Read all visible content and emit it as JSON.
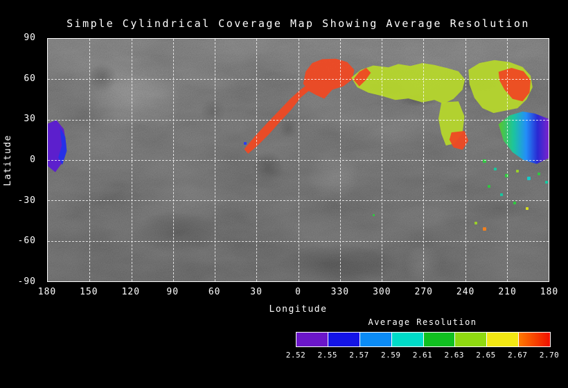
{
  "page": {
    "background": "#000000",
    "foreground": "#ffffff",
    "grid_color": "rgba(255,255,255,0.8)"
  },
  "chart_data": {
    "type": "heatmap",
    "title": "Simple Cylindrical Coverage Map Showing Average Resolution",
    "xlabel": "Longitude",
    "ylabel": "Latitude",
    "x_tick_labels": [
      "180",
      "150",
      "120",
      "90",
      "60",
      "30",
      "0",
      "330",
      "300",
      "270",
      "240",
      "210",
      "180"
    ],
    "y_tick_labels": [
      "90",
      "60",
      "30",
      "0",
      "-30",
      "-60",
      "-90"
    ],
    "x_axis_note": "longitude wraps 180 -> 0 -> 330 ... 210 -> 180",
    "y_range_deg": [
      90,
      -90
    ],
    "grid": "dashed white lines every 30 degrees, boxed axes",
    "basemap": "grayscale simple-cylindrical planetary surface mosaic",
    "colorbar": {
      "title": "Average Resolution",
      "min": 2.52,
      "max": 2.7,
      "tick_labels": [
        "2.52",
        "2.55",
        "2.57",
        "2.59",
        "2.61",
        "2.63",
        "2.65",
        "2.67",
        "2.70"
      ],
      "position": "bottom-right",
      "segments": [
        {
          "color": "#6b16c9"
        },
        {
          "color": "#1414e6"
        },
        {
          "color": "#0b8bf5"
        },
        {
          "color": "#00dcc8"
        },
        {
          "color": "#10c020"
        },
        {
          "color": "#8fd911"
        },
        {
          "color": "#f2e713"
        },
        {
          "color": "#ff7a00",
          "color2": "#f01000"
        }
      ]
    },
    "regions": [
      {
        "name": "west-limb-purple-patch",
        "approx_value": "2.52-2.54",
        "approx_lon": "180-168",
        "approx_lat": "-8 to 27",
        "color": "#5b1ad2",
        "opacity": 0.95,
        "points": [
          [
            0.0,
            0.35
          ],
          [
            0.017,
            0.335
          ],
          [
            0.032,
            0.372
          ],
          [
            0.037,
            0.44
          ],
          [
            0.031,
            0.505
          ],
          [
            0.015,
            0.55
          ],
          [
            0.0,
            0.525
          ]
        ]
      },
      {
        "name": "west-limb-blue-fringe",
        "approx_value": "2.55",
        "color": "#2331e8",
        "opacity": 0.95,
        "points": [
          [
            0.024,
            0.365
          ],
          [
            0.035,
            0.405
          ],
          [
            0.038,
            0.462
          ],
          [
            0.029,
            0.52
          ],
          [
            0.021,
            0.49
          ],
          [
            0.028,
            0.44
          ]
        ]
      },
      {
        "name": "red-diagonal-arc",
        "approx_value": "2.69-2.70",
        "approx_lon": "40-0",
        "approx_lat": "8 to 52",
        "color": "#ef4923",
        "opacity": 0.95,
        "points": [
          [
            0.392,
            0.455
          ],
          [
            0.414,
            0.401
          ],
          [
            0.437,
            0.349
          ],
          [
            0.461,
            0.298
          ],
          [
            0.483,
            0.25
          ],
          [
            0.5,
            0.218
          ],
          [
            0.513,
            0.196
          ],
          [
            0.524,
            0.21
          ],
          [
            0.505,
            0.242
          ],
          [
            0.486,
            0.293
          ],
          [
            0.463,
            0.344
          ],
          [
            0.441,
            0.395
          ],
          [
            0.419,
            0.44
          ],
          [
            0.4,
            0.474
          ]
        ]
      },
      {
        "name": "north-red-blob",
        "approx_value": "2.69-2.70",
        "approx_lon": "355-318",
        "approx_lat": "50 to 75",
        "color": "#ef4923",
        "opacity": 0.95,
        "points": [
          [
            0.51,
            0.185
          ],
          [
            0.515,
            0.135
          ],
          [
            0.528,
            0.1
          ],
          [
            0.548,
            0.084
          ],
          [
            0.575,
            0.082
          ],
          [
            0.598,
            0.096
          ],
          [
            0.612,
            0.128
          ],
          [
            0.608,
            0.168
          ],
          [
            0.59,
            0.196
          ],
          [
            0.568,
            0.21
          ],
          [
            0.552,
            0.247
          ],
          [
            0.536,
            0.232
          ],
          [
            0.52,
            0.214
          ]
        ]
      },
      {
        "name": "north-chartreuse-band",
        "approx_value": "2.64-2.66",
        "approx_lon": "323-241",
        "approx_lat": "42 to 70",
        "color": "#b5d62c",
        "opacity": 0.95,
        "points": [
          [
            0.606,
            0.16
          ],
          [
            0.625,
            0.128
          ],
          [
            0.65,
            0.11
          ],
          [
            0.68,
            0.118
          ],
          [
            0.7,
            0.104
          ],
          [
            0.724,
            0.112
          ],
          [
            0.748,
            0.1
          ],
          [
            0.772,
            0.108
          ],
          [
            0.796,
            0.12
          ],
          [
            0.82,
            0.134
          ],
          [
            0.833,
            0.168
          ],
          [
            0.828,
            0.21
          ],
          [
            0.81,
            0.248
          ],
          [
            0.79,
            0.268
          ],
          [
            0.772,
            0.252
          ],
          [
            0.748,
            0.262
          ],
          [
            0.72,
            0.246
          ],
          [
            0.694,
            0.252
          ],
          [
            0.668,
            0.236
          ],
          [
            0.64,
            0.222
          ],
          [
            0.618,
            0.2
          ]
        ]
      },
      {
        "name": "band-red-streak",
        "approx_value": "2.70",
        "color": "#ef4923",
        "opacity": 0.95,
        "points": [
          [
            0.61,
            0.168
          ],
          [
            0.622,
            0.136
          ],
          [
            0.636,
            0.12
          ],
          [
            0.645,
            0.14
          ],
          [
            0.634,
            0.172
          ],
          [
            0.622,
            0.196
          ]
        ]
      },
      {
        "name": "band-south-extension",
        "approx_value": "2.64-2.66",
        "color": "#b5d62c",
        "opacity": 0.95,
        "points": [
          [
            0.786,
            0.262
          ],
          [
            0.82,
            0.258
          ],
          [
            0.832,
            0.32
          ],
          [
            0.828,
            0.388
          ],
          [
            0.812,
            0.432
          ],
          [
            0.795,
            0.44
          ],
          [
            0.786,
            0.392
          ],
          [
            0.78,
            0.33
          ]
        ]
      },
      {
        "name": "small-red-patch-south",
        "approx_value": "2.70",
        "color": "#ef4923",
        "opacity": 0.95,
        "points": [
          [
            0.806,
            0.386
          ],
          [
            0.832,
            0.38
          ],
          [
            0.84,
            0.42
          ],
          [
            0.828,
            0.458
          ],
          [
            0.81,
            0.448
          ],
          [
            0.802,
            0.416
          ]
        ]
      },
      {
        "name": "east-chartreuse-cluster",
        "approx_value": "2.64-2.66",
        "approx_lon": "250-215",
        "approx_lat": "35 to 68",
        "color": "#b5d62c",
        "opacity": 0.95,
        "points": [
          [
            0.84,
            0.128
          ],
          [
            0.862,
            0.1
          ],
          [
            0.892,
            0.088
          ],
          [
            0.922,
            0.096
          ],
          [
            0.948,
            0.116
          ],
          [
            0.964,
            0.152
          ],
          [
            0.968,
            0.2
          ],
          [
            0.956,
            0.25
          ],
          [
            0.938,
            0.286
          ],
          [
            0.914,
            0.296
          ],
          [
            0.89,
            0.306
          ],
          [
            0.868,
            0.286
          ],
          [
            0.852,
            0.244
          ],
          [
            0.842,
            0.188
          ]
        ]
      },
      {
        "name": "east-cluster-red-blob",
        "approx_value": "2.69-2.70",
        "color": "#ef4923",
        "opacity": 0.95,
        "points": [
          [
            0.9,
            0.136
          ],
          [
            0.926,
            0.12
          ],
          [
            0.95,
            0.134
          ],
          [
            0.964,
            0.17
          ],
          [
            0.962,
            0.222
          ],
          [
            0.948,
            0.258
          ],
          [
            0.928,
            0.248
          ],
          [
            0.912,
            0.21
          ],
          [
            0.902,
            0.172
          ]
        ]
      },
      {
        "name": "east-limb-rainbow-patch",
        "approx_value": "2.56-2.63 (green to purple toward limb)",
        "approx_lon": "215-180",
        "approx_lat": "-3 to 35",
        "opacity": 0.95,
        "gradient": [
          [
            "0%",
            "#59c928"
          ],
          [
            "30%",
            "#17c9a0"
          ],
          [
            "55%",
            "#1e90ff"
          ],
          [
            "78%",
            "#2525d8"
          ],
          [
            "100%",
            "#7a1fd0"
          ]
        ],
        "points": [
          [
            0.9,
            0.352
          ],
          [
            0.922,
            0.316
          ],
          [
            0.948,
            0.3
          ],
          [
            0.972,
            0.308
          ],
          [
            1.0,
            0.33
          ],
          [
            1.0,
            0.492
          ],
          [
            0.976,
            0.516
          ],
          [
            0.95,
            0.5
          ],
          [
            0.928,
            0.468
          ],
          [
            0.91,
            0.42
          ]
        ]
      }
    ],
    "specks": [
      {
        "fx": 0.394,
        "fy": 0.43,
        "color": "#2a3cf0",
        "size": 4
      },
      {
        "fx": 0.872,
        "fy": 0.503,
        "color": "#30c840",
        "size": 5
      },
      {
        "fx": 0.894,
        "fy": 0.537,
        "color": "#17c9a0",
        "size": 4
      },
      {
        "fx": 0.917,
        "fy": 0.563,
        "color": "#30c840",
        "size": 5
      },
      {
        "fx": 0.938,
        "fy": 0.545,
        "color": "#9ad02a",
        "size": 4
      },
      {
        "fx": 0.96,
        "fy": 0.577,
        "color": "#17c9c9",
        "size": 5
      },
      {
        "fx": 0.981,
        "fy": 0.557,
        "color": "#30c840",
        "size": 4
      },
      {
        "fx": 0.996,
        "fy": 0.591,
        "color": "#17c9a0",
        "size": 4
      },
      {
        "fx": 0.881,
        "fy": 0.608,
        "color": "#30c840",
        "size": 4
      },
      {
        "fx": 0.906,
        "fy": 0.642,
        "color": "#17c9a0",
        "size": 4
      },
      {
        "fx": 0.932,
        "fy": 0.676,
        "color": "#30c840",
        "size": 4
      },
      {
        "fx": 0.957,
        "fy": 0.699,
        "color": "#d8e020",
        "size": 4
      },
      {
        "fx": 0.855,
        "fy": 0.759,
        "color": "#9ad02a",
        "size": 4
      },
      {
        "fx": 0.872,
        "fy": 0.784,
        "color": "#f08020",
        "size": 5
      },
      {
        "fx": 0.651,
        "fy": 0.727,
        "color": "#30c840",
        "size": 3
      }
    ]
  }
}
